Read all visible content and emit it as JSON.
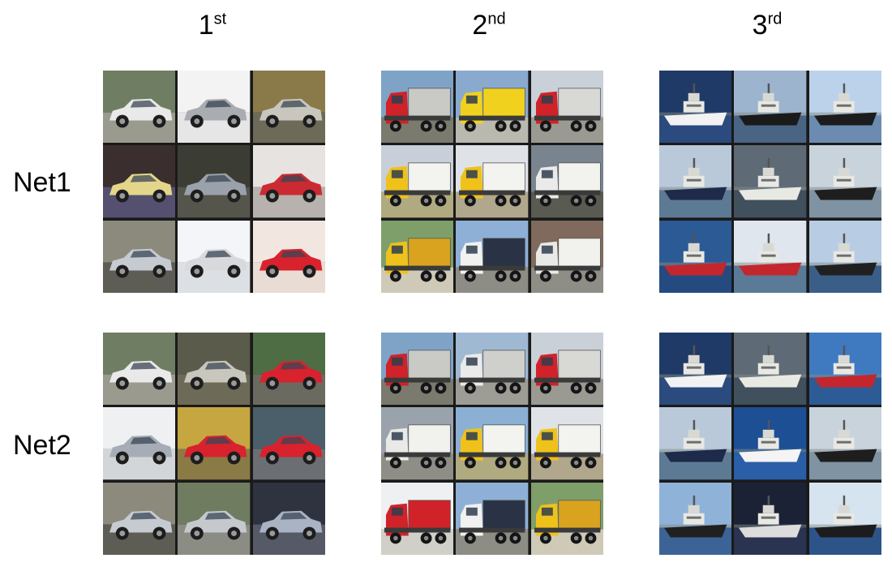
{
  "columns": [
    {
      "rank": "1",
      "suffix": "st"
    },
    {
      "rank": "2",
      "suffix": "nd"
    },
    {
      "rank": "3",
      "suffix": "rd"
    }
  ],
  "rows": [
    {
      "label": "Net1"
    },
    {
      "label": "Net2"
    }
  ],
  "grids": [
    [
      {
        "class": "car",
        "tiles": [
          {
            "body": "#e9e9e9",
            "bg": "#6f7d62",
            "ground": "#9a9a8e"
          },
          {
            "body": "#a9adb2",
            "bg": "#f3f3f3",
            "ground": "#e6e6e6"
          },
          {
            "body": "#c9c6bd",
            "bg": "#8a7a4a",
            "ground": "#6e6a58"
          },
          {
            "body": "#e3d68a",
            "bg": "#3a2e2e",
            "ground": "#555070"
          },
          {
            "body": "#9aa1aa",
            "bg": "#3b3d35",
            "ground": "#55554c"
          },
          {
            "body": "#cc2a33",
            "bg": "#e7e3e0",
            "ground": "#b8b2ae"
          },
          {
            "body": "#c6cbd1",
            "bg": "#8b8a7d",
            "ground": "#5d5d55"
          },
          {
            "body": "#d7d9dc",
            "bg": "#f4f5f8",
            "ground": "#dcdfe4"
          },
          {
            "body": "#d8222e",
            "bg": "#f1e6e0",
            "ground": "#e8dcd4"
          }
        ]
      },
      {
        "class": "truck",
        "tiles": [
          {
            "cab": "#d02228",
            "cargo": "#c9c9c6",
            "bg": "#7fa3c7",
            "ground": "#7a7a6e"
          },
          {
            "cab": "#f0d21e",
            "cargo": "#f0d21e",
            "bg": "#8aa9cf",
            "ground": "#b9b9b0"
          },
          {
            "cab": "#d02228",
            "cargo": "#d8d8d5",
            "bg": "#c9d0d8",
            "ground": "#9b9a92"
          },
          {
            "cab": "#efc21b",
            "cargo": "#f3f3ef",
            "bg": "#c8cfd8",
            "ground": "#b0aa80"
          },
          {
            "cab": "#efc21b",
            "cargo": "#f3f3ef",
            "bg": "#dfe3e8",
            "ground": "#b0a78c"
          },
          {
            "cab": "#eaeaea",
            "cargo": "#f2f2ef",
            "bg": "#7a848f",
            "ground": "#595a52"
          },
          {
            "cab": "#efc21b",
            "cargo": "#d9a31f",
            "bg": "#7f9f6a",
            "ground": "#cfcab7"
          },
          {
            "cab": "#f1f1ef",
            "cargo": "#2a3245",
            "bg": "#8fb0d6",
            "ground": "#8d8d86"
          },
          {
            "cab": "#e9e9e7",
            "cargo": "#f1f1ee",
            "bg": "#7f6a5d",
            "ground": "#8e8e87"
          }
        ]
      },
      {
        "class": "ship",
        "tiles": [
          {
            "hull": "#f2f2f2",
            "sky": "#1f3a66",
            "sea": "#2b4a7e"
          },
          {
            "hull": "#1a1a1a",
            "sky": "#9db4cf",
            "sea": "#4a6484"
          },
          {
            "hull": "#1c1c1c",
            "sky": "#bcd2ea",
            "sea": "#6c8bb1"
          },
          {
            "hull": "#1d2a4a",
            "sky": "#b9c9d9",
            "sea": "#5d7a94"
          },
          {
            "hull": "#e9e9e4",
            "sky": "#5e6a76",
            "sea": "#40505d"
          },
          {
            "hull": "#1e1e1e",
            "sky": "#c8d3dc",
            "sea": "#7f93a2"
          },
          {
            "hull": "#c4262e",
            "sky": "#2c5a95",
            "sea": "#244a80"
          },
          {
            "hull": "#c4262e",
            "sky": "#dfe6ee",
            "sea": "#5a7a97"
          },
          {
            "hull": "#202020",
            "sky": "#b8cde3",
            "sea": "#3b5e88"
          }
        ]
      }
    ],
    [
      {
        "class": "car",
        "tiles": [
          {
            "body": "#e9e9e9",
            "bg": "#6f7d62",
            "ground": "#9a9a8e"
          },
          {
            "body": "#c9c6bd",
            "bg": "#5b5b4c",
            "ground": "#6e6a58"
          },
          {
            "body": "#d8222e",
            "bg": "#4f6d45",
            "ground": "#6b6a60"
          },
          {
            "body": "#a6adb6",
            "bg": "#eef0f2",
            "ground": "#d3d6d9"
          },
          {
            "body": "#d8222e",
            "bg": "#c6a640",
            "ground": "#8a7a45"
          },
          {
            "body": "#d8222e",
            "bg": "#4a5f6a",
            "ground": "#6b6f73"
          },
          {
            "body": "#c6cbd1",
            "bg": "#8b8a7d",
            "ground": "#5d5d55"
          },
          {
            "body": "#c5c9ce",
            "bg": "#6f7c60",
            "ground": "#8b8c84"
          },
          {
            "body": "#aab3c3",
            "bg": "#2f3340",
            "ground": "#555a66"
          }
        ]
      },
      {
        "class": "truck",
        "tiles": [
          {
            "cab": "#d02228",
            "cargo": "#c9c9c6",
            "bg": "#7fa3c7",
            "ground": "#7a7a6e"
          },
          {
            "cab": "#eaeaea",
            "cargo": "#cfcfcc",
            "bg": "#9fb9d3",
            "ground": "#9d9d95"
          },
          {
            "cab": "#d02228",
            "cargo": "#d8d8d5",
            "bg": "#c9d0d8",
            "ground": "#9b9a92"
          },
          {
            "cab": "#e9e9e7",
            "cargo": "#f1f1ee",
            "bg": "#9aa3ab",
            "ground": "#8e8e87"
          },
          {
            "cab": "#efc21b",
            "cargo": "#f3f3ef",
            "bg": "#8bb0d4",
            "ground": "#b0aa80"
          },
          {
            "cab": "#efc21b",
            "cargo": "#f3f3ef",
            "bg": "#dfe3e8",
            "ground": "#b0a78c"
          },
          {
            "cab": "#d02228",
            "cargo": "#d02228",
            "bg": "#eef0f2",
            "ground": "#d0d0c8"
          },
          {
            "cab": "#f1f1ef",
            "cargo": "#2a3245",
            "bg": "#8fb0d6",
            "ground": "#8d8d86"
          },
          {
            "cab": "#efc21b",
            "cargo": "#d9a31f",
            "bg": "#7f9f6a",
            "ground": "#cfcab7"
          }
        ]
      },
      {
        "class": "ship",
        "tiles": [
          {
            "hull": "#f2f2f2",
            "sky": "#1f3a66",
            "sea": "#2b4a7e"
          },
          {
            "hull": "#e9e9e4",
            "sky": "#5e6a76",
            "sea": "#40505d"
          },
          {
            "hull": "#c4262e",
            "sky": "#3f79c0",
            "sea": "#2c5b96"
          },
          {
            "hull": "#1d2a4a",
            "sky": "#b9c9d9",
            "sea": "#5d7a94"
          },
          {
            "hull": "#f4f4f4",
            "sky": "#1c4f94",
            "sea": "#2a5ea6"
          },
          {
            "hull": "#1e1e1e",
            "sky": "#c8d3dc",
            "sea": "#7f93a2"
          },
          {
            "hull": "#202020",
            "sky": "#8fb3d8",
            "sea": "#3c6396"
          },
          {
            "hull": "#dcdcdc",
            "sky": "#1c2236",
            "sea": "#2a3350"
          },
          {
            "hull": "#1c1c1c",
            "sky": "#d6e4ef",
            "sea": "#2c5488"
          }
        ]
      }
    ]
  ]
}
